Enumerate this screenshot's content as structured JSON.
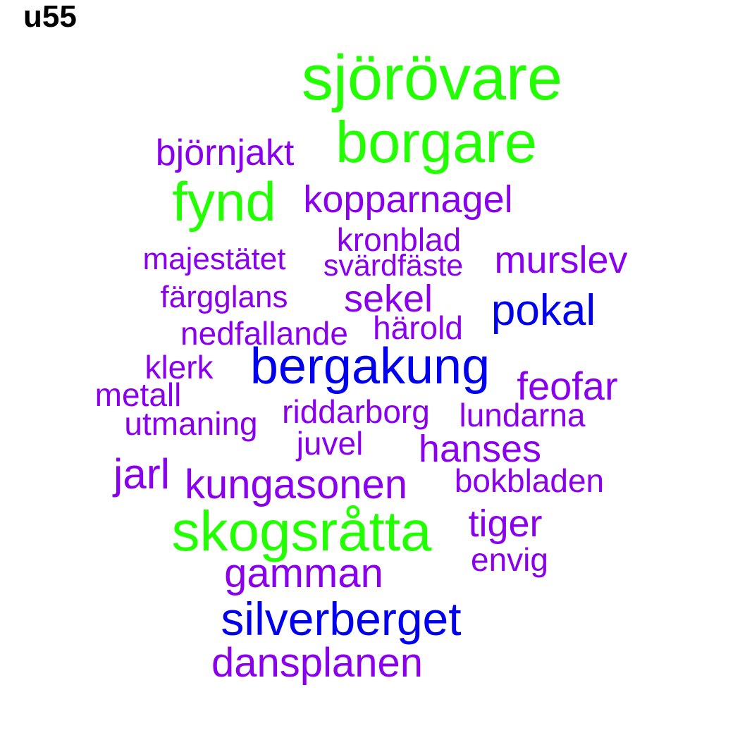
{
  "title": "u55",
  "colors": {
    "green": "#22ff00",
    "blue": "#0000ee",
    "purple": "#8a00ee"
  },
  "words": [
    {
      "text": "sjörövare",
      "color": "green"
    },
    {
      "text": "borgare",
      "color": "green"
    },
    {
      "text": "björnjakt",
      "color": "purple"
    },
    {
      "text": "fynd",
      "color": "green"
    },
    {
      "text": "kopparnagel",
      "color": "purple"
    },
    {
      "text": "kronblad",
      "color": "purple"
    },
    {
      "text": "majestätet",
      "color": "purple"
    },
    {
      "text": "svärdfäste",
      "color": "purple"
    },
    {
      "text": "murslev",
      "color": "purple"
    },
    {
      "text": "färgglans",
      "color": "purple"
    },
    {
      "text": "sekel",
      "color": "purple"
    },
    {
      "text": "pokal",
      "color": "blue"
    },
    {
      "text": "nedfallande",
      "color": "purple"
    },
    {
      "text": "härold",
      "color": "purple"
    },
    {
      "text": "klerk",
      "color": "purple"
    },
    {
      "text": "bergakung",
      "color": "blue"
    },
    {
      "text": "feofar",
      "color": "purple"
    },
    {
      "text": "metall",
      "color": "purple"
    },
    {
      "text": "riddarborg",
      "color": "purple"
    },
    {
      "text": "lundarna",
      "color": "purple"
    },
    {
      "text": "utmaning",
      "color": "purple"
    },
    {
      "text": "juvel",
      "color": "purple"
    },
    {
      "text": "hanses",
      "color": "purple"
    },
    {
      "text": "jarl",
      "color": "purple"
    },
    {
      "text": "kungasonen",
      "color": "purple"
    },
    {
      "text": "bokbladen",
      "color": "purple"
    },
    {
      "text": "skogsråtta",
      "color": "green"
    },
    {
      "text": "tiger",
      "color": "purple"
    },
    {
      "text": "envig",
      "color": "purple"
    },
    {
      "text": "gamman",
      "color": "purple"
    },
    {
      "text": "silverberget",
      "color": "blue"
    },
    {
      "text": "dansplanen",
      "color": "purple"
    }
  ]
}
